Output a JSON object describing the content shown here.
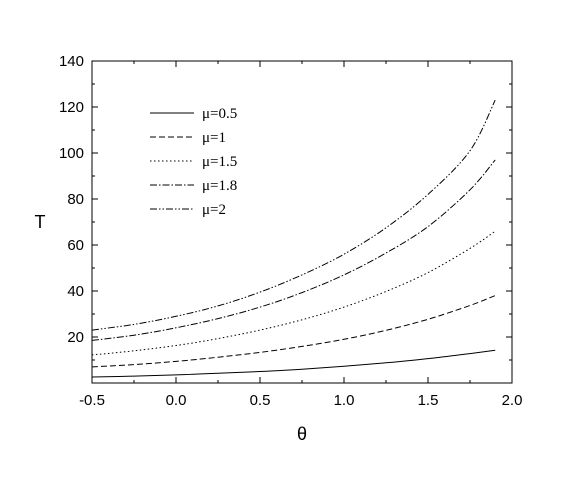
{
  "chart_data": {
    "type": "line",
    "title": "",
    "xlabel": "θ",
    "ylabel": "T",
    "xlim": [
      -0.5,
      2.0
    ],
    "ylim": [
      0,
      140
    ],
    "xticks": [
      -0.5,
      0.0,
      0.5,
      1.0,
      1.5,
      2.0
    ],
    "xtick_labels": [
      "-0.5",
      "0.0",
      "0.5",
      "1.0",
      "1.5",
      "2.0"
    ],
    "yticks": [
      20,
      40,
      60,
      80,
      100,
      120,
      140
    ],
    "ytick_labels": [
      "20",
      "40",
      "60",
      "80",
      "100",
      "120",
      "140"
    ],
    "grid": false,
    "legend_position": "upper-left",
    "series": [
      {
        "name": "μ=0.5",
        "dash": "solid",
        "x": [
          -0.5,
          -0.25,
          0.0,
          0.25,
          0.5,
          0.75,
          1.0,
          1.25,
          1.5,
          1.75,
          1.9
        ],
        "y": [
          2.6,
          3.0,
          3.5,
          4.2,
          5.0,
          6.0,
          7.3,
          8.8,
          10.6,
          12.8,
          14.2
        ]
      },
      {
        "name": "μ=1",
        "dash": "dashed",
        "x": [
          -0.5,
          -0.25,
          0.0,
          0.25,
          0.5,
          0.75,
          1.0,
          1.25,
          1.5,
          1.75,
          1.9
        ],
        "y": [
          7.0,
          8.0,
          9.4,
          11.2,
          13.3,
          15.9,
          19.0,
          22.9,
          27.7,
          33.7,
          38.0
        ]
      },
      {
        "name": "μ=1.5",
        "dash": "dotted",
        "x": [
          -0.5,
          -0.25,
          0.0,
          0.25,
          0.5,
          0.75,
          1.0,
          1.25,
          1.5,
          1.75,
          1.9
        ],
        "y": [
          12.2,
          14.0,
          16.3,
          19.3,
          23.0,
          27.5,
          33.0,
          39.8,
          48.0,
          58.5,
          66.0
        ]
      },
      {
        "name": "μ=1.8",
        "dash": "dashdot",
        "x": [
          -0.5,
          -0.25,
          0.0,
          0.25,
          0.5,
          0.75,
          1.0,
          1.25,
          1.5,
          1.75,
          1.9
        ],
        "y": [
          18.5,
          20.8,
          24.0,
          28.0,
          33.0,
          39.3,
          47.0,
          56.5,
          68.0,
          84.0,
          97.0
        ]
      },
      {
        "name": "μ=2",
        "dash": "dashdotdot",
        "x": [
          -0.5,
          -0.25,
          0.0,
          0.25,
          0.5,
          0.75,
          1.0,
          1.25,
          1.5,
          1.75,
          1.9
        ],
        "y": [
          23.0,
          25.5,
          29.0,
          33.5,
          39.5,
          47.0,
          56.0,
          67.5,
          82.0,
          101.0,
          123.0
        ]
      }
    ]
  }
}
